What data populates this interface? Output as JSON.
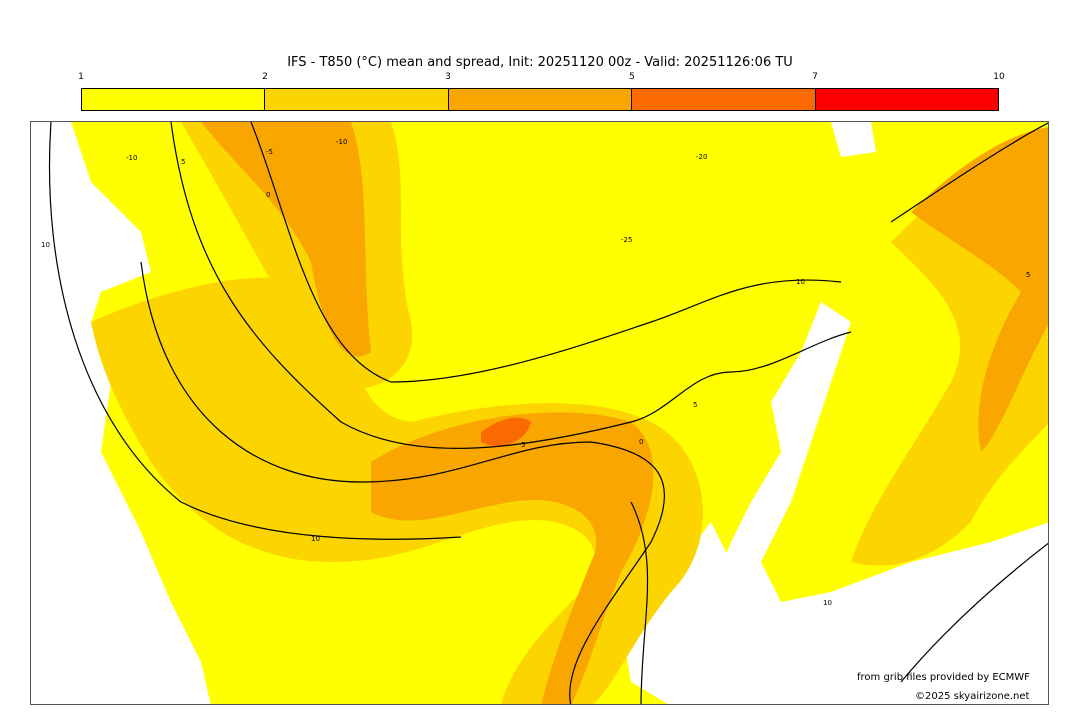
{
  "title": "IFS - T850 (°C) mean and spread, Init: 20251120 00z - Valid: 20251126:06 TU",
  "colorbar": {
    "ticks": [
      "1",
      "2",
      "3",
      "5",
      "7",
      "10"
    ],
    "colors": [
      "#ffff00",
      "#fcd500",
      "#f9a600",
      "#fa6a00",
      "#ff0000"
    ]
  },
  "contour_labels": [
    "10",
    "5",
    "0",
    "-5",
    "-10",
    "-10",
    "-20",
    "-25",
    "10",
    "5",
    "0",
    "5",
    "10",
    "10",
    "5"
  ],
  "credits": {
    "source": "from grib files provided by ECMWF",
    "copyright": "©2025 skyairizone.net"
  }
}
